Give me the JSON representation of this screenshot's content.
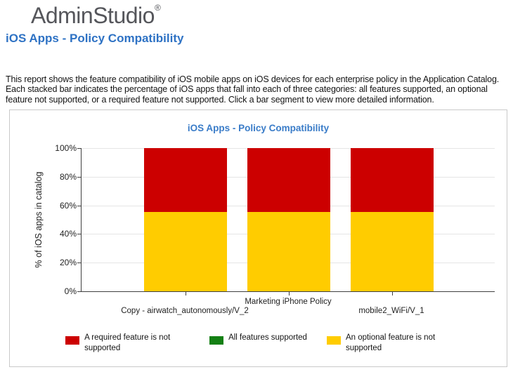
{
  "header": {
    "logo_text": "AdminStudio",
    "logo_reg_mark": "®",
    "page_title": "iOS Apps - Policy Compatibility",
    "description": "This report shows the feature compatibility of iOS mobile apps on iOS devices for each enterprise policy in the Application Catalog. Each stacked bar indicates the percentage of iOS apps that fall into each of three categories: all features supported, an optional feature not supported, or a required feature not supported. Click a bar segment to view more detailed information."
  },
  "colors": {
    "logo_gray": "#55565b",
    "page_title_blue": "#2e72c4",
    "chart_title_blue": "#3a7cc8",
    "red": "#cc0000",
    "green": "#148014",
    "yellow": "#ffcc00",
    "gridline": "#e5e5e5",
    "panel_border": "#c9c9c9"
  },
  "chart_data": {
    "type": "bar",
    "stacked": true,
    "title": "iOS Apps - Policy Compatibility",
    "xlabel": "",
    "ylabel": "% of iOS apps in catalog",
    "ylim": [
      0,
      100
    ],
    "grid": true,
    "legend_position": "bottom",
    "yticks": [
      {
        "label": "0%",
        "value": 0
      },
      {
        "label": "20%",
        "value": 20
      },
      {
        "label": "40%",
        "value": 40
      },
      {
        "label": "60%",
        "value": 60
      },
      {
        "label": "80%",
        "value": 80
      },
      {
        "label": "100%",
        "value": 100
      }
    ],
    "categories": [
      "Copy - airwatch_autonomously/V_2",
      "Marketing iPhone Policy",
      "mobile2_WiFi/V_1"
    ],
    "series": [
      {
        "name": "A required feature is not supported",
        "color": "#cc0000",
        "values": [
          44.4,
          44.4,
          44.4
        ]
      },
      {
        "name": "All features supported",
        "color": "#148014",
        "values": [
          0,
          0,
          0
        ]
      },
      {
        "name": "An optional feature is not supported",
        "color": "#ffcc00",
        "values": [
          55.6,
          55.6,
          55.6
        ]
      }
    ],
    "stack_order_bottom_to_top": [
      "An optional feature is not supported",
      "All features supported",
      "A required feature is not supported"
    ]
  }
}
